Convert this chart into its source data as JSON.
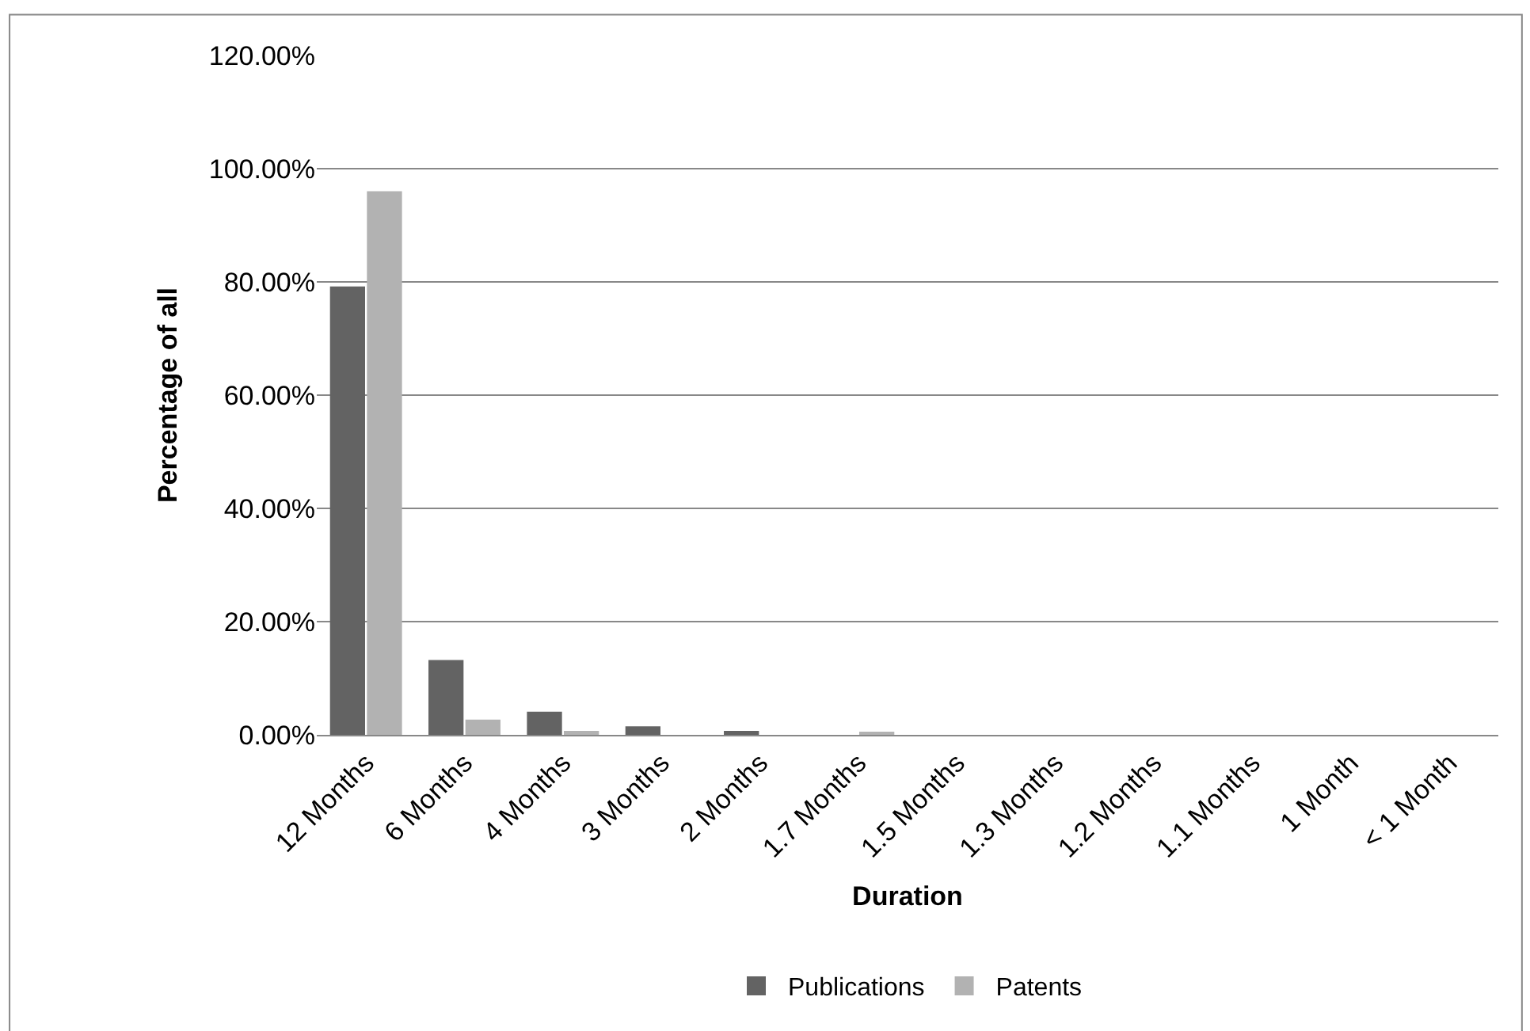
{
  "chart_data": {
    "type": "bar",
    "xlabel": "Duration",
    "ylabel": "Percentage of all",
    "categories": [
      "12 Months",
      "6 Months",
      "4 Months",
      "3 Months",
      "2 Months",
      "1.7 Months",
      "1.5 Months",
      "1.3 Months",
      "1.2 Months",
      "1.1 Months",
      "1 Month",
      "< 1 Month"
    ],
    "series": [
      {
        "name": "Publications",
        "color": "#636363",
        "values": [
          79.2,
          13.2,
          4.1,
          1.5,
          0.7,
          0,
          0,
          0,
          0,
          0,
          0,
          0
        ]
      },
      {
        "name": "Patents",
        "color": "#b2b2b2",
        "values": [
          96.0,
          2.7,
          0.7,
          0,
          0,
          0.4,
          0,
          0,
          0,
          0,
          0,
          0
        ]
      }
    ],
    "ylim": [
      0,
      120
    ],
    "yticks": [
      {
        "value": 0,
        "label": "0.00%"
      },
      {
        "value": 20,
        "label": "20.00%"
      },
      {
        "value": 40,
        "label": "40.00%"
      },
      {
        "value": 60,
        "label": "60.00%"
      },
      {
        "value": 80,
        "label": "80.00%"
      },
      {
        "value": 100,
        "label": "100.00%"
      },
      {
        "value": 120,
        "label": "120.00%"
      }
    ],
    "grid": "y",
    "legend": "bottom"
  }
}
